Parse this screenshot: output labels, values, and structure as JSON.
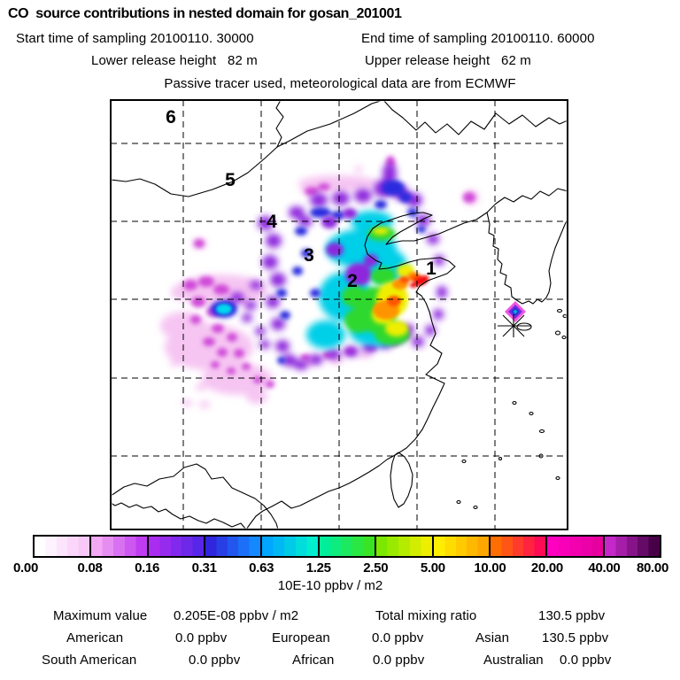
{
  "header": {
    "title": "CO  source contributions in nested domain for gosan_201001",
    "start_time": "Start time of sampling 20100110. 30000",
    "end_time": "End time of sampling 20100110. 60000",
    "lower_release": "Lower release height   82 m",
    "upper_release": "Upper release height   62 m",
    "tracer_note": "Passive tracer used, meteorological data are from ECMWF"
  },
  "map": {
    "region_labels": [
      {
        "text": "1"
      },
      {
        "text": "2"
      },
      {
        "text": "3"
      },
      {
        "text": "4"
      },
      {
        "text": "5"
      },
      {
        "text": "6"
      }
    ],
    "receptor_marker": "asterisk at Gosan (Jeju)"
  },
  "colorbar": {
    "labels": [
      "0.00",
      "0.08",
      "0.16",
      "0.31",
      "0.63",
      "1.25",
      "2.50",
      "5.00",
      "10.00",
      "20.00",
      "40.00",
      "80.00"
    ],
    "unit": "10E-10 ppbv / m2",
    "segments": [
      [
        "#ffffff",
        "#f8c9f8"
      ],
      [
        "#f2a8f2",
        "#c03cf0"
      ],
      [
        "#aa2cf0",
        "#5826e8"
      ],
      [
        "#3026de",
        "#1488ff"
      ],
      [
        "#00a6ff",
        "#00efcf"
      ],
      [
        "#00ee9a",
        "#38e424"
      ],
      [
        "#7ce800",
        "#eeee00"
      ],
      [
        "#ffee00",
        "#ffa600"
      ],
      [
        "#ff6e00",
        "#ff0a55"
      ],
      [
        "#ff00c0",
        "#e6009e"
      ],
      [
        "#c428c8",
        "#470048"
      ]
    ]
  },
  "summary": {
    "maximum_label": "Maximum value",
    "maximum_value": "0.205E-08 ppbv / m2",
    "total_label": "Total mixing ratio",
    "total_value": "130.5 ppbv",
    "continents": [
      {
        "label": "American",
        "value": "0.0 ppbv"
      },
      {
        "label": "European",
        "value": "0.0 ppbv"
      },
      {
        "label": "Asian",
        "value": "130.5 ppbv"
      },
      {
        "label": "South American",
        "value": "0.0 ppbv"
      },
      {
        "label": "African",
        "value": "0.0 ppbv"
      },
      {
        "label": "Australian",
        "value": "0.0 ppbv"
      }
    ]
  },
  "chart_data": {
    "type": "heatmap",
    "title": "CO source contributions in nested domain for gosan_201001",
    "legend_scale": [
      0.0,
      0.08,
      0.16,
      0.31,
      0.63,
      1.25,
      2.5,
      5.0,
      10.0,
      20.0,
      40.0,
      80.0
    ],
    "unit": "10E-10 ppbv / m2",
    "maximum_value": "0.205E-08 ppbv / m2",
    "total_mixing_ratio_ppbv": 130.5,
    "contributions_ppbv": {
      "American": 0.0,
      "European": 0.0,
      "Asian": 130.5,
      "South American": 0.0,
      "African": 0.0,
      "Australian": 0.0
    },
    "numbered_source_regions": [
      "1",
      "2",
      "3",
      "4",
      "5",
      "6"
    ],
    "notes": "Filled-contour plume over eastern China; receptor site marked by asterisk near Jeju; peak (red) on Shandong coast near label 1"
  }
}
